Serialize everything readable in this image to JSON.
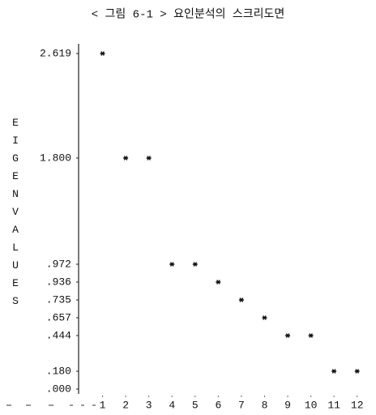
{
  "chart_data": {
    "type": "scatter",
    "title": "< 그림 6-1 >  요인분석의 스크리도면",
    "y_label": "EIGENVALUES",
    "x": [
      1,
      2,
      3,
      4,
      5,
      6,
      7,
      8,
      9,
      10,
      11,
      12
    ],
    "values": [
      2.619,
      1.8,
      1.8,
      0.972,
      0.972,
      0.936,
      0.735,
      0.657,
      0.444,
      0.444,
      0.18,
      0.18
    ],
    "xlim": [
      0,
      12.5
    ],
    "xticks": [
      1,
      2,
      3,
      4,
      5,
      6,
      7,
      8,
      9,
      10,
      11,
      12
    ],
    "ylim": [
      0,
      2.619
    ],
    "yticks": [
      2.619,
      {
        "value": 1.8,
        "label": "1.800"
      },
      {
        "value": 0.972,
        "label": ".972"
      },
      {
        "value": 0.936,
        "label": ".936"
      },
      {
        "value": 0.735,
        "label": ".735"
      },
      {
        "value": 0.657,
        "label": ".657"
      },
      {
        "value": 0.444,
        "label": ".444"
      },
      {
        "value": 0.18,
        "label": ".180"
      },
      {
        "value": 0,
        "label": ".000"
      }
    ],
    "color": "#111111"
  }
}
